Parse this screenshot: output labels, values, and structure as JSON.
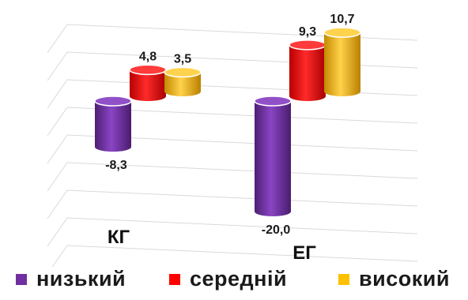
{
  "chart_data": {
    "type": "bar",
    "categories": [
      "КГ",
      "ЕГ"
    ],
    "series": [
      {
        "name": "низький",
        "color": "#7030A0",
        "values": [
          -8.3,
          -20.0
        ],
        "labels": [
          "-8,3",
          "-20,0"
        ]
      },
      {
        "name": "середній",
        "color": "#FF0000",
        "values": [
          4.8,
          9.3
        ],
        "labels": [
          "4,8",
          "9,3"
        ]
      },
      {
        "name": "високий",
        "color": "#FFC000",
        "values": [
          3.5,
          10.7
        ],
        "labels": [
          "3,5",
          "10,7"
        ]
      }
    ],
    "ylim": [
      -25,
      15
    ],
    "grid": true,
    "legend": "bottom",
    "style": "3d-cylinder"
  }
}
